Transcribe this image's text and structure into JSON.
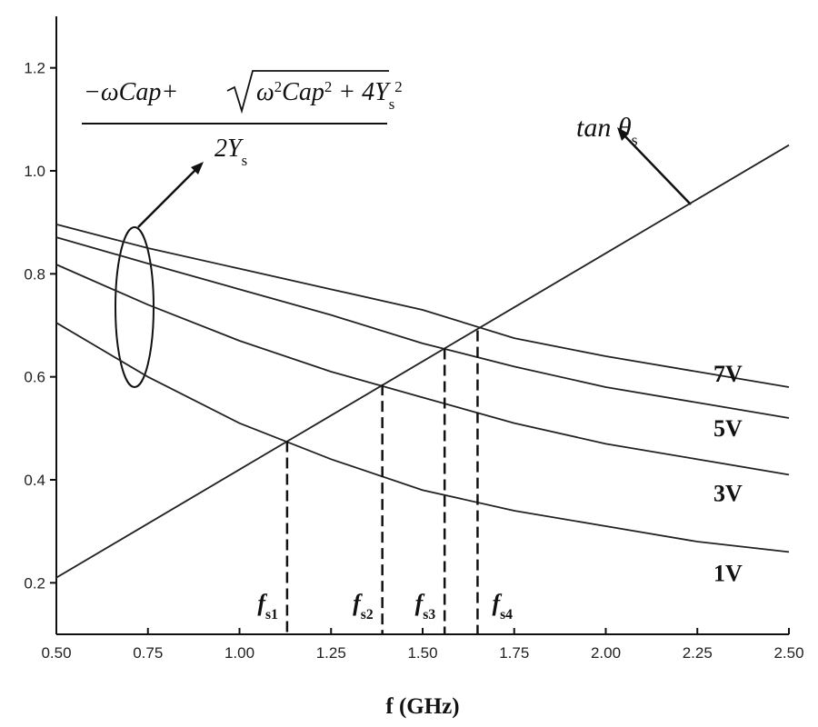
{
  "chart_data": {
    "type": "line",
    "x_label": "f  (GHz)",
    "x": [
      0.5,
      0.75,
      1.0,
      1.25,
      1.5,
      1.75,
      2.0,
      2.25,
      2.5
    ],
    "series": [
      {
        "name": "1V",
        "color": "#222222",
        "values": [
          0.705,
          0.6,
          0.51,
          0.44,
          0.38,
          0.34,
          0.31,
          0.28,
          0.26
        ]
      },
      {
        "name": "3V",
        "color": "#222222",
        "values": [
          0.818,
          0.74,
          0.67,
          0.61,
          0.56,
          0.51,
          0.47,
          0.44,
          0.41
        ]
      },
      {
        "name": "5V",
        "color": "#222222",
        "values": [
          0.871,
          0.82,
          0.77,
          0.72,
          0.665,
          0.62,
          0.58,
          0.55,
          0.52
        ]
      },
      {
        "name": "7V",
        "color": "#222222",
        "values": [
          0.896,
          0.85,
          0.81,
          0.77,
          0.73,
          0.675,
          0.64,
          0.61,
          0.58
        ]
      },
      {
        "name": [
          {
            "text": "tan "
          },
          {
            "text": "θ"
          },
          {
            "sub": "s"
          }
        ],
        "color": "#222222",
        "values": [
          0.21,
          0.315,
          0.42,
          0.525,
          0.63,
          0.735,
          0.84,
          0.945,
          1.05
        ]
      }
    ],
    "markers": [
      {
        "x": 1.13,
        "y": 0.475,
        "label": [
          {
            "text": "f"
          },
          {
            "sub": "s1"
          }
        ]
      },
      {
        "x": 1.39,
        "y": 0.585,
        "label": [
          {
            "text": "f"
          },
          {
            "sub": "s2"
          }
        ]
      },
      {
        "x": 1.56,
        "y": 0.655,
        "label": [
          {
            "text": "f"
          },
          {
            "sub": "s3"
          }
        ]
      },
      {
        "x": 1.65,
        "y": 0.69,
        "label": [
          {
            "text": "f"
          },
          {
            "sub": "s4"
          }
        ]
      }
    ],
    "formula": {
      "numerator_prefix": [
        {
          "text": "−ωCap+"
        }
      ],
      "radicand": [
        {
          "text": "ω"
        },
        {
          "sup": "2"
        },
        {
          "text": "Cap"
        },
        {
          "sup": "2"
        },
        {
          "text": " + 4Y"
        },
        {
          "sub": "s"
        },
        {
          "sup": "2"
        }
      ],
      "denominator": [
        {
          "text": "2Y"
        },
        {
          "sub": "s"
        }
      ]
    },
    "xlim": [
      0.5,
      2.5
    ],
    "ylim": [
      0.1,
      1.3
    ],
    "xticks": [
      {
        "value": 0.5,
        "label": "0.50"
      },
      {
        "value": 0.75,
        "label": "0.75"
      },
      {
        "value": 1,
        "label": "1.00"
      },
      {
        "value": 1.25,
        "label": "1.25"
      },
      {
        "value": 1.5,
        "label": "1.50"
      },
      {
        "value": 1.75,
        "label": "1.75"
      },
      {
        "value": 2,
        "label": "2.00"
      },
      {
        "value": 2.25,
        "label": "2.25"
      },
      {
        "value": 2.5,
        "label": "2.50"
      }
    ],
    "yticks": [
      0.2,
      0.4,
      0.6,
      0.8,
      {
        "value": 1,
        "label": "1.0"
      },
      1.2
    ],
    "grid": false
  }
}
